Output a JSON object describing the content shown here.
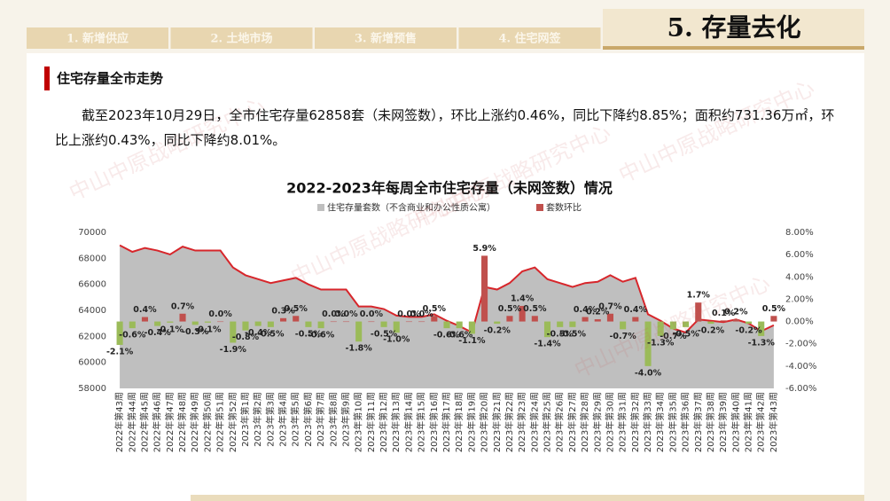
{
  "header": {
    "tabs": [
      "1. 新增供应",
      "2. 土地市场",
      "3. 新增预售",
      "4. 住宅网签"
    ],
    "active_tab": "5. 存量去化"
  },
  "section_title": "住宅存量全市走势",
  "paragraph": "截至2023年10月29日，全市住宅存量62858套（未网签数），环比上涨约0.46%，同比下降约8.85%；面积约731.36万㎡，环比上涨约0.43%，同比下降约8.01%。",
  "watermark": "中山中原战略研究中心",
  "chart_data": {
    "type": "combo",
    "title": "2022-2023年每周全市住宅存量（未网签数）情况",
    "categories": [
      "2022年第43周",
      "2022年第44周",
      "2022年第45周",
      "2022年第46周",
      "2022年第47周",
      "2022年第48周",
      "2022年第49周",
      "2022年第50周",
      "2022年第51周",
      "2022年第52周",
      "2023年第1周",
      "2023年第2周",
      "2023年第3周",
      "2023年第4周",
      "2023年第5周",
      "2023年第6周",
      "2023年第7周",
      "2023年第8周",
      "2023年第9周",
      "2023年第10周",
      "2023年第11周",
      "2023年第12周",
      "2023年第13周",
      "2023年第14周",
      "2023年第15周",
      "2023年第16周",
      "2023年第17周",
      "2023年第18周",
      "2023年第19周",
      "2023年第20周",
      "2023年第21周",
      "2023年第22周",
      "2023年第23周",
      "2023年第24周",
      "2023年第25周",
      "2023年第26周",
      "2023年第27周",
      "2023年第28周",
      "2023年第29周",
      "2023年第30周",
      "2023年第31周",
      "2023年第32周",
      "2023年第33周",
      "2023年第34周",
      "2023年第35周",
      "2023年第36周",
      "2023年第37周",
      "2023年第38周",
      "2023年第39周",
      "2023年第40周",
      "2023年第41周",
      "2023年第42周",
      "2023年第43周"
    ],
    "series": [
      {
        "name": "住宅存量套数（不含商业和办公性质公寓）",
        "type": "area",
        "color": "#bfbfbf",
        "line_color": "#d7262b",
        "values": [
          69000,
          68500,
          68800,
          68600,
          68300,
          68900,
          68600,
          68600,
          68600,
          67300,
          66700,
          66400,
          66100,
          66300,
          66500,
          66000,
          65600,
          65600,
          65600,
          64300,
          64300,
          64100,
          63600,
          63500,
          63500,
          63700,
          63200,
          62800,
          62300,
          65800,
          65600,
          66100,
          67000,
          67300,
          66400,
          66100,
          65800,
          66100,
          66200,
          66700,
          66200,
          66500,
          63700,
          63200,
          62600,
          62300,
          63300,
          63200,
          63100,
          63300,
          63000,
          62400,
          62858
        ]
      },
      {
        "name": "套数环比",
        "type": "bar",
        "axis": "y2",
        "color": "#c0504d",
        "negative_color": "#9bbb59",
        "values": [
          -2.1,
          -0.6,
          0.4,
          -0.4,
          -0.1,
          0.7,
          -0.3,
          -0.1,
          0.0,
          -1.9,
          -0.8,
          -0.4,
          -0.5,
          0.3,
          0.5,
          -0.5,
          -0.6,
          0.0,
          0.0,
          -1.8,
          0.0,
          -0.5,
          -1.0,
          0.0,
          0.0,
          0.5,
          -0.6,
          -0.6,
          -1.1,
          5.9,
          -0.2,
          0.5,
          1.4,
          0.5,
          -1.4,
          -0.5,
          -0.5,
          0.4,
          0.2,
          0.7,
          -0.7,
          0.4,
          -4.0,
          -1.3,
          -0.7,
          -0.5,
          1.7,
          -0.2,
          0.1,
          0.2,
          -0.2,
          -1.3,
          0.5
        ],
        "value_labels": [
          "-2.1%",
          "-0.6%",
          "0.4%",
          "-0.4%",
          "-0.1%",
          "0.7%",
          "-0.3%",
          "-0.1%",
          "0.0%",
          "-1.9%",
          "-0.8%",
          "-0.4%",
          "-0.5%",
          "0.3%",
          "0.5%",
          "-0.5%",
          "-0.6%",
          "0.0%",
          "0.0%",
          "-1.8%",
          "0.0%",
          "-0.5%",
          "-1.0%",
          "0.0%",
          "0.0%",
          "0.5%",
          "-0.6%",
          "-0.6%",
          "-1.1%",
          "5.9%",
          "-0.2%",
          "0.5%",
          "1.4%",
          "0.5%",
          "-1.4%",
          "-0.5%",
          "-0.5%",
          "0.4%",
          "0.2%",
          "0.7%",
          "-0.7%",
          "0.4%",
          "-4.0%",
          "-1.3%",
          "-0.7%",
          "-0.5%",
          "1.7%",
          "-0.2%",
          "0.1%",
          "0.2%",
          "-0.2%",
          "-1.3%",
          "0.5%"
        ]
      }
    ],
    "ylim": [
      58000,
      70000
    ],
    "yticks": [
      58000,
      60000,
      62000,
      64000,
      66000,
      68000,
      70000
    ],
    "y2lim": [
      -6,
      8
    ],
    "y2ticks": [
      {
        "value": -6,
        "label": "-6.00%"
      },
      {
        "value": -4,
        "label": "-4.00%"
      },
      {
        "value": -2,
        "label": "-2.00%"
      },
      {
        "value": 0,
        "label": "0.00%"
      },
      {
        "value": 2,
        "label": "2.00%"
      },
      {
        "value": 4,
        "label": "4.00%"
      },
      {
        "value": 6,
        "label": "6.00%"
      },
      {
        "value": 8,
        "label": "8.00%"
      }
    ],
    "grid": false
  }
}
